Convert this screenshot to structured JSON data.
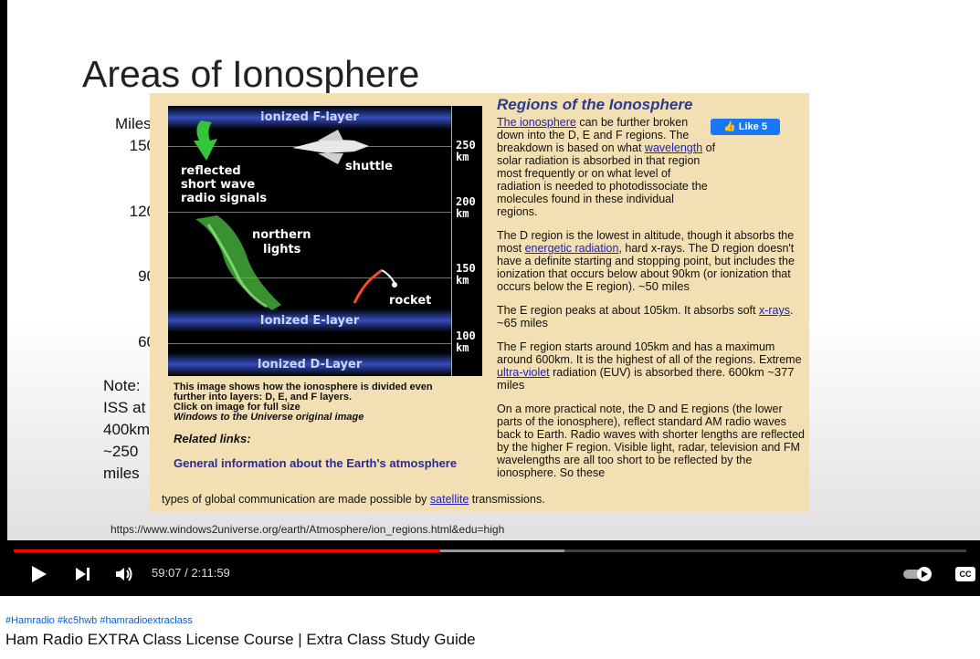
{
  "slide": {
    "title": "Areas of Ionosphere",
    "miles_header": "Miles",
    "miles_ticks": [
      "150",
      "120",
      "90",
      "60"
    ],
    "note_lines": [
      "Note:",
      "ISS at",
      "400km",
      "~250",
      "miles"
    ],
    "url": "https://www.windows2universe.org/earth/Atmosphere/ion_regions.html&edu=high"
  },
  "diagram": {
    "f_layer": "ionized F-layer",
    "e_layer": "Ionized E-layer",
    "d_layer": "Ionized D-Layer",
    "shuttle": "shuttle",
    "reflected": [
      "reflected",
      "short wave",
      "radio signals"
    ],
    "northern": [
      "northern",
      "lights"
    ],
    "rocket": "rocket",
    "km_labels": [
      [
        "250",
        "km"
      ],
      [
        "200",
        "km"
      ],
      [
        "150",
        "km"
      ],
      [
        "100",
        "km"
      ]
    ]
  },
  "caption": {
    "line1": "This image shows how the ionosphere is divided even",
    "line2": "further into layers: D, E, and F layers.",
    "line3": "Click on image for full size",
    "line4": "Windows to the Universe original image",
    "related_heading": "Related links:",
    "related_link": "General information about the Earth's atmosphere"
  },
  "article": {
    "heading": "Regions of the Ionosphere",
    "like_label": "Like 5",
    "p1_link1": "The ionosphere",
    "p1_a": " can be further broken down into the D, E and F regions. The breakdown is based on what ",
    "p1_link2": "wavelength",
    "p1_b": " of solar radiation is absorbed in that region most frequently or on what level of radiation is needed to photodissociate the molecules found in these individual regions.",
    "p2_a": "The D region is the lowest in altitude, though it absorbs the most ",
    "p2_link": "energetic radiation",
    "p2_b": ", hard x-rays. The D region doesn't have a definite starting and stopping point, but includes the ionization that occurs below about 90km (or ionization that occurs below the E region).",
    "p2_note": "~50 miles",
    "p3_a": "The E region peaks at about 105km. It absorbs soft ",
    "p3_link": "x-rays",
    "p3_b": ".",
    "p3_note": "~65 miles",
    "p4_a": "The F region starts around 105km and has a maximum around 600km. It is the highest of all of the regions. Extreme ",
    "p4_link": "ultra-violet",
    "p4_b": " radiation (EUV) is absorbed there.",
    "p4_note": "600km ~377 miles",
    "p5": "On a more practical note, the D and E regions (the lower parts of the ionosphere), reflect standard AM radio waves back to Earth. Radio waves with shorter lengths are reflected by the higher F region. Visible light, radar, television and FM wavelengths are all too short to be reflected by the ionosphere. So these",
    "p6_a": "types of global communication are made possible by ",
    "p6_link": "satellite",
    "p6_b": " transmissions."
  },
  "player": {
    "time_display": "59:07 / 2:11:59",
    "played_fraction": 0.448,
    "buffered_fraction": 0.578,
    "icons": [
      "play-icon",
      "next-icon",
      "volume-icon",
      "autoplay-toggle-icon",
      "captions-icon"
    ],
    "cc_label": "CC"
  },
  "video": {
    "hashtags": "#Hamradio #kc5hwb #hamradioextraclass",
    "title": "Ham Radio EXTRA Class License Course | Extra Class Study Guide"
  }
}
